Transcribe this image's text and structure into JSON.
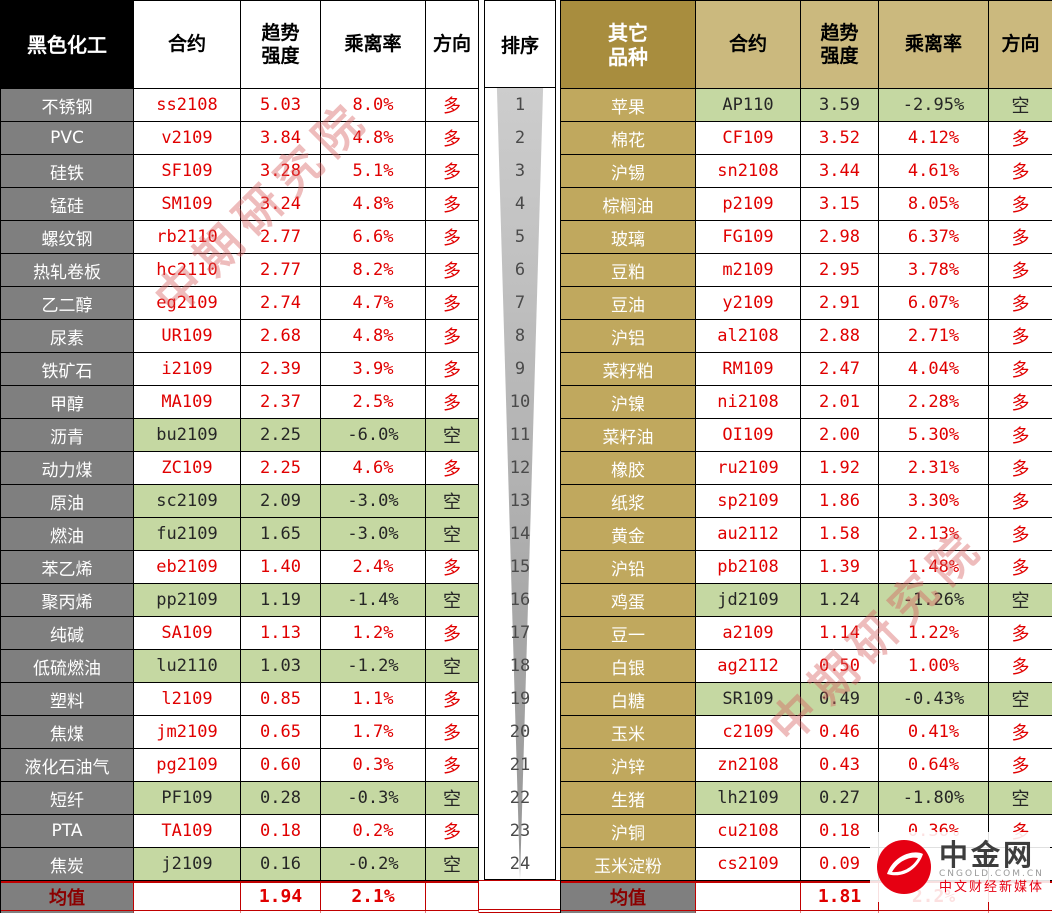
{
  "chart_data": [
    {
      "type": "table",
      "title": "黑色化工",
      "columns": [
        "合约",
        "趋势\n强度",
        "乘离率",
        "方向"
      ],
      "rows": [
        {
          "name": "不锈钢",
          "contract": "ss2108",
          "strength": "5.03",
          "deviation": "8.0%",
          "direction": "多",
          "short": false
        },
        {
          "name": "PVC",
          "contract": "v2109",
          "strength": "3.84",
          "deviation": "4.8%",
          "direction": "多",
          "short": false
        },
        {
          "name": "硅铁",
          "contract": "SF109",
          "strength": "3.28",
          "deviation": "5.1%",
          "direction": "多",
          "short": false
        },
        {
          "name": "锰硅",
          "contract": "SM109",
          "strength": "3.24",
          "deviation": "4.8%",
          "direction": "多",
          "short": false
        },
        {
          "name": "螺纹钢",
          "contract": "rb2110",
          "strength": "2.77",
          "deviation": "6.6%",
          "direction": "多",
          "short": false
        },
        {
          "name": "热轧卷板",
          "contract": "hc2110",
          "strength": "2.77",
          "deviation": "8.2%",
          "direction": "多",
          "short": false
        },
        {
          "name": "乙二醇",
          "contract": "eg2109",
          "strength": "2.74",
          "deviation": "4.7%",
          "direction": "多",
          "short": false
        },
        {
          "name": "尿素",
          "contract": "UR109",
          "strength": "2.68",
          "deviation": "4.8%",
          "direction": "多",
          "short": false
        },
        {
          "name": "铁矿石",
          "contract": "i2109",
          "strength": "2.39",
          "deviation": "3.9%",
          "direction": "多",
          "short": false
        },
        {
          "name": "甲醇",
          "contract": "MA109",
          "strength": "2.37",
          "deviation": "2.5%",
          "direction": "多",
          "short": false
        },
        {
          "name": "沥青",
          "contract": "bu2109",
          "strength": "2.25",
          "deviation": "-6.0%",
          "direction": "空",
          "short": true
        },
        {
          "name": "动力煤",
          "contract": "ZC109",
          "strength": "2.25",
          "deviation": "4.6%",
          "direction": "多",
          "short": false
        },
        {
          "name": "原油",
          "contract": "sc2109",
          "strength": "2.09",
          "deviation": "-3.0%",
          "direction": "空",
          "short": true
        },
        {
          "name": "燃油",
          "contract": "fu2109",
          "strength": "1.65",
          "deviation": "-3.0%",
          "direction": "空",
          "short": true
        },
        {
          "name": "苯乙烯",
          "contract": "eb2109",
          "strength": "1.40",
          "deviation": "2.4%",
          "direction": "多",
          "short": false
        },
        {
          "name": "聚丙烯",
          "contract": "pp2109",
          "strength": "1.19",
          "deviation": "-1.4%",
          "direction": "空",
          "short": true
        },
        {
          "name": "纯碱",
          "contract": "SA109",
          "strength": "1.13",
          "deviation": "1.2%",
          "direction": "多",
          "short": false
        },
        {
          "name": "低硫燃油",
          "contract": "lu2110",
          "strength": "1.03",
          "deviation": "-1.2%",
          "direction": "空",
          "short": true
        },
        {
          "name": "塑料",
          "contract": "l2109",
          "strength": "0.85",
          "deviation": "1.1%",
          "direction": "多",
          "short": false
        },
        {
          "name": "焦煤",
          "contract": "jm2109",
          "strength": "0.65",
          "deviation": "1.7%",
          "direction": "多",
          "short": false
        },
        {
          "name": "液化石油气",
          "contract": "pg2109",
          "strength": "0.60",
          "deviation": "0.3%",
          "direction": "多",
          "short": false
        },
        {
          "name": "短纤",
          "contract": "PF109",
          "strength": "0.28",
          "deviation": "-0.3%",
          "direction": "空",
          "short": true
        },
        {
          "name": "PTA",
          "contract": "TA109",
          "strength": "0.18",
          "deviation": "0.2%",
          "direction": "多",
          "short": false
        },
        {
          "name": "焦炭",
          "contract": "j2109",
          "strength": "0.16",
          "deviation": "-0.2%",
          "direction": "空",
          "short": true
        }
      ],
      "mean": {
        "label": "均值",
        "strength": "1.94",
        "deviation": "2.1%"
      }
    },
    {
      "type": "table",
      "title": "其它\n品种",
      "columns": [
        "合约",
        "趋势\n强度",
        "乘离率",
        "方向"
      ],
      "rows": [
        {
          "name": "苹果",
          "contract": "AP110",
          "strength": "3.59",
          "deviation": "-2.95%",
          "direction": "空",
          "short": true
        },
        {
          "name": "棉花",
          "contract": "CF109",
          "strength": "3.52",
          "deviation": "4.12%",
          "direction": "多",
          "short": false
        },
        {
          "name": "沪锡",
          "contract": "sn2108",
          "strength": "3.44",
          "deviation": "4.61%",
          "direction": "多",
          "short": false
        },
        {
          "name": "棕榈油",
          "contract": "p2109",
          "strength": "3.15",
          "deviation": "8.05%",
          "direction": "多",
          "short": false
        },
        {
          "name": "玻璃",
          "contract": "FG109",
          "strength": "2.98",
          "deviation": "6.37%",
          "direction": "多",
          "short": false
        },
        {
          "name": "豆粕",
          "contract": "m2109",
          "strength": "2.95",
          "deviation": "3.78%",
          "direction": "多",
          "short": false
        },
        {
          "name": "豆油",
          "contract": "y2109",
          "strength": "2.91",
          "deviation": "6.07%",
          "direction": "多",
          "short": false
        },
        {
          "name": "沪铝",
          "contract": "al2108",
          "strength": "2.88",
          "deviation": "2.71%",
          "direction": "多",
          "short": false
        },
        {
          "name": "菜籽粕",
          "contract": "RM109",
          "strength": "2.47",
          "deviation": "4.04%",
          "direction": "多",
          "short": false
        },
        {
          "name": "沪镍",
          "contract": "ni2108",
          "strength": "2.01",
          "deviation": "2.28%",
          "direction": "多",
          "short": false
        },
        {
          "name": "菜籽油",
          "contract": "OI109",
          "strength": "2.00",
          "deviation": "5.30%",
          "direction": "多",
          "short": false
        },
        {
          "name": "橡胶",
          "contract": "ru2109",
          "strength": "1.92",
          "deviation": "2.31%",
          "direction": "多",
          "short": false
        },
        {
          "name": "纸浆",
          "contract": "sp2109",
          "strength": "1.86",
          "deviation": "3.30%",
          "direction": "多",
          "short": false
        },
        {
          "name": "黄金",
          "contract": "au2112",
          "strength": "1.58",
          "deviation": "2.13%",
          "direction": "多",
          "short": false
        },
        {
          "name": "沪铅",
          "contract": "pb2108",
          "strength": "1.39",
          "deviation": "1.48%",
          "direction": "多",
          "short": false
        },
        {
          "name": "鸡蛋",
          "contract": "jd2109",
          "strength": "1.24",
          "deviation": "-1.26%",
          "direction": "空",
          "short": true
        },
        {
          "name": "豆一",
          "contract": "a2109",
          "strength": "1.14",
          "deviation": "1.22%",
          "direction": "多",
          "short": false
        },
        {
          "name": "白银",
          "contract": "ag2112",
          "strength": "0.50",
          "deviation": "1.00%",
          "direction": "多",
          "short": false
        },
        {
          "name": "白糖",
          "contract": "SR109",
          "strength": "0.49",
          "deviation": "-0.43%",
          "direction": "空",
          "short": true
        },
        {
          "name": "玉米",
          "contract": "c2109",
          "strength": "0.46",
          "deviation": "0.41%",
          "direction": "多",
          "short": false
        },
        {
          "name": "沪锌",
          "contract": "zn2108",
          "strength": "0.43",
          "deviation": "0.64%",
          "direction": "多",
          "short": false
        },
        {
          "name": "生猪",
          "contract": "lh2109",
          "strength": "0.27",
          "deviation": "-1.80%",
          "direction": "空",
          "short": true
        },
        {
          "name": "沪铜",
          "contract": "cu2108",
          "strength": "0.18",
          "deviation": "0.36%",
          "direction": "多",
          "short": false
        },
        {
          "name": "玉米淀粉",
          "contract": "cs2109",
          "strength": "0.09",
          "deviation": "",
          "direction": "",
          "short": false
        }
      ],
      "mean": {
        "label": "均值",
        "strength": "1.81",
        "deviation": "2.2%"
      }
    }
  ],
  "rank": {
    "title": "排序",
    "values": [
      "1",
      "2",
      "3",
      "4",
      "5",
      "6",
      "7",
      "8",
      "9",
      "10",
      "11",
      "12",
      "13",
      "14",
      "15",
      "16",
      "17",
      "18",
      "19",
      "20",
      "21",
      "22",
      "23",
      "24"
    ]
  },
  "watermark": {
    "text": "中期研究院"
  },
  "logo": {
    "brand": "中金网",
    "domain": "CNGOLD.COM.CN",
    "tagline": "中文财经新媒体"
  },
  "colors": {
    "long_red": "#E00000",
    "short_row_green": "#C5D8A2",
    "left_name_bg": "#7F7F7F",
    "right_name_bg": "#C0A85E",
    "right_title_bg": "#A88D3E",
    "right_header_bg": "#CBB97E",
    "left_title_bg": "#000000",
    "mean_border_red": "#C00000"
  }
}
